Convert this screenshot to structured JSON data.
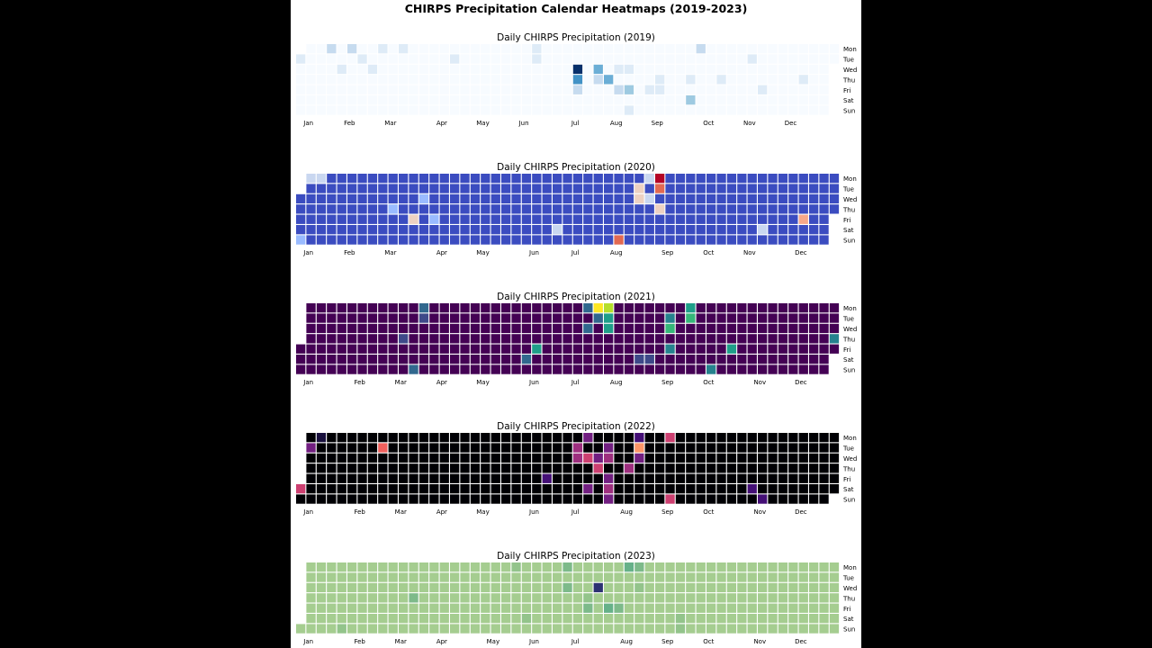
{
  "figure": {
    "title": "CHIRPS Precipitation Calendar Heatmaps (2019-2023)"
  },
  "day_labels": [
    "Mon",
    "Tue",
    "Wed",
    "Thu",
    "Fri",
    "Sat",
    "Sun"
  ],
  "chart_data": [
    {
      "type": "heatmap",
      "year": 2019,
      "title": "Daily CHIRPS Precipitation (2019)",
      "month_labels": [
        "Jan",
        "Feb",
        "Mar",
        "Apr",
        "May",
        "Jun",
        "Jul",
        "Aug",
        "Sep",
        "Oct",
        "Nov",
        "Dec"
      ],
      "colormap": "Blues",
      "colors": [
        "#f7fbff",
        "#deebf7",
        "#c6dbef",
        "#9ecae1",
        "#6baed6",
        "#4292c6",
        "#2171b5",
        "#08519c",
        "#08306b"
      ],
      "background_level": 0,
      "highlight_cells": [
        {
          "week": 3,
          "day": 0,
          "level": 2
        },
        {
          "week": 5,
          "day": 0,
          "level": 2
        },
        {
          "week": 8,
          "day": 0,
          "level": 1
        },
        {
          "week": 10,
          "day": 0,
          "level": 1
        },
        {
          "week": 23,
          "day": 0,
          "level": 1
        },
        {
          "week": 39,
          "day": 0,
          "level": 2
        },
        {
          "week": 0,
          "day": 1,
          "level": 1
        },
        {
          "week": 6,
          "day": 1,
          "level": 1
        },
        {
          "week": 15,
          "day": 1,
          "level": 1
        },
        {
          "week": 23,
          "day": 1,
          "level": 1
        },
        {
          "week": 44,
          "day": 1,
          "level": 1
        },
        {
          "week": 4,
          "day": 2,
          "level": 1
        },
        {
          "week": 7,
          "day": 2,
          "level": 1
        },
        {
          "week": 27,
          "day": 2,
          "level": 8
        },
        {
          "week": 29,
          "day": 2,
          "level": 4
        },
        {
          "week": 31,
          "day": 2,
          "level": 1
        },
        {
          "week": 32,
          "day": 2,
          "level": 1
        },
        {
          "week": 27,
          "day": 3,
          "level": 5
        },
        {
          "week": 29,
          "day": 3,
          "level": 2
        },
        {
          "week": 30,
          "day": 3,
          "level": 4
        },
        {
          "week": 35,
          "day": 3,
          "level": 1
        },
        {
          "week": 38,
          "day": 3,
          "level": 1
        },
        {
          "week": 41,
          "day": 3,
          "level": 1
        },
        {
          "week": 49,
          "day": 3,
          "level": 1
        },
        {
          "week": 27,
          "day": 4,
          "level": 2
        },
        {
          "week": 31,
          "day": 4,
          "level": 2
        },
        {
          "week": 32,
          "day": 4,
          "level": 3
        },
        {
          "week": 34,
          "day": 4,
          "level": 1
        },
        {
          "week": 35,
          "day": 4,
          "level": 1
        },
        {
          "week": 45,
          "day": 4,
          "level": 1
        },
        {
          "week": 38,
          "day": 5,
          "level": 3
        },
        {
          "week": 32,
          "day": 6,
          "level": 1
        }
      ]
    },
    {
      "type": "heatmap",
      "year": 2020,
      "title": "Daily CHIRPS Precipitation (2020)",
      "month_labels": [
        "Jan",
        "Feb",
        "Mar",
        "Apr",
        "May",
        "Jun",
        "Jul",
        "Aug",
        "Sep",
        "Oct",
        "Nov",
        "Dec"
      ],
      "colormap": "coolwarm",
      "colors": [
        "#3b4cc0",
        "#6788ee",
        "#9abbff",
        "#c9d7f0",
        "#edd1c2",
        "#f7a889",
        "#e26952",
        "#b40426"
      ],
      "background_level": 0,
      "highlight_cells": [
        {
          "week": 1,
          "day": 0,
          "level": 3
        },
        {
          "week": 2,
          "day": 0,
          "level": 3
        },
        {
          "week": 34,
          "day": 0,
          "level": 3
        },
        {
          "week": 35,
          "day": 0,
          "level": 7
        },
        {
          "week": 33,
          "day": 1,
          "level": 4
        },
        {
          "week": 35,
          "day": 1,
          "level": 6
        },
        {
          "week": 12,
          "day": 2,
          "level": 2
        },
        {
          "week": 33,
          "day": 2,
          "level": 4
        },
        {
          "week": 34,
          "day": 2,
          "level": 3
        },
        {
          "week": 9,
          "day": 3,
          "level": 2
        },
        {
          "week": 35,
          "day": 3,
          "level": 4
        },
        {
          "week": 11,
          "day": 4,
          "level": 4
        },
        {
          "week": 13,
          "day": 4,
          "level": 2
        },
        {
          "week": 49,
          "day": 4,
          "level": 5
        },
        {
          "week": 25,
          "day": 5,
          "level": 3
        },
        {
          "week": 45,
          "day": 5,
          "level": 3
        },
        {
          "week": 0,
          "day": 6,
          "level": 2
        },
        {
          "week": 31,
          "day": 6,
          "level": 6
        }
      ]
    },
    {
      "type": "heatmap",
      "year": 2021,
      "title": "Daily CHIRPS Precipitation (2021)",
      "month_labels": [
        "Jan",
        "Feb",
        "Mar",
        "Apr",
        "May",
        "Jun",
        "Jul",
        "Aug",
        "Sep",
        "Oct",
        "Nov",
        "Dec"
      ],
      "colormap": "viridis",
      "colors": [
        "#440154",
        "#482878",
        "#3e4989",
        "#31688e",
        "#26828e",
        "#1f9e89",
        "#35b779",
        "#6ece58",
        "#b5de2b",
        "#fde725"
      ],
      "background_level": 0,
      "highlight_cells": [
        {
          "week": 12,
          "day": 0,
          "level": 3
        },
        {
          "week": 28,
          "day": 0,
          "level": 3
        },
        {
          "week": 29,
          "day": 0,
          "level": 9
        },
        {
          "week": 30,
          "day": 0,
          "level": 8
        },
        {
          "week": 38,
          "day": 0,
          "level": 5
        },
        {
          "week": 12,
          "day": 1,
          "level": 2
        },
        {
          "week": 29,
          "day": 1,
          "level": 3
        },
        {
          "week": 30,
          "day": 1,
          "level": 5
        },
        {
          "week": 36,
          "day": 1,
          "level": 4
        },
        {
          "week": 38,
          "day": 1,
          "level": 6
        },
        {
          "week": 28,
          "day": 2,
          "level": 3
        },
        {
          "week": 30,
          "day": 2,
          "level": 5
        },
        {
          "week": 36,
          "day": 2,
          "level": 6
        },
        {
          "week": 10,
          "day": 3,
          "level": 2
        },
        {
          "week": 52,
          "day": 3,
          "level": 4
        },
        {
          "week": 23,
          "day": 4,
          "level": 5
        },
        {
          "week": 36,
          "day": 4,
          "level": 4
        },
        {
          "week": 42,
          "day": 4,
          "level": 5
        },
        {
          "week": 22,
          "day": 5,
          "level": 3
        },
        {
          "week": 33,
          "day": 5,
          "level": 2
        },
        {
          "week": 34,
          "day": 5,
          "level": 2
        },
        {
          "week": 11,
          "day": 6,
          "level": 3
        },
        {
          "week": 40,
          "day": 6,
          "level": 4
        }
      ]
    },
    {
      "type": "heatmap",
      "year": 2022,
      "title": "Daily CHIRPS Precipitation (2022)",
      "month_labels": [
        "Jan",
        "Feb",
        "Mar",
        "Apr",
        "May",
        "Jun",
        "Jul",
        "Aug",
        "Sep",
        "Oct",
        "Nov",
        "Dec"
      ],
      "colormap": "magma",
      "colors": [
        "#000004",
        "#180f3d",
        "#440f76",
        "#721f81",
        "#9e2f7f",
        "#cd4071",
        "#f1605d",
        "#fd9668",
        "#feca8d",
        "#fcfdbf"
      ],
      "background_level": 0,
      "highlight_cells": [
        {
          "week": 2,
          "day": 0,
          "level": 1
        },
        {
          "week": 28,
          "day": 0,
          "level": 3
        },
        {
          "week": 33,
          "day": 0,
          "level": 2
        },
        {
          "week": 36,
          "day": 0,
          "level": 5
        },
        {
          "week": 1,
          "day": 1,
          "level": 3
        },
        {
          "week": 8,
          "day": 1,
          "level": 6
        },
        {
          "week": 27,
          "day": 1,
          "level": 4
        },
        {
          "week": 30,
          "day": 1,
          "level": 3
        },
        {
          "week": 33,
          "day": 1,
          "level": 7
        },
        {
          "week": 27,
          "day": 2,
          "level": 4
        },
        {
          "week": 28,
          "day": 2,
          "level": 5
        },
        {
          "week": 29,
          "day": 2,
          "level": 3
        },
        {
          "week": 30,
          "day": 2,
          "level": 4
        },
        {
          "week": 33,
          "day": 2,
          "level": 3
        },
        {
          "week": 29,
          "day": 3,
          "level": 5
        },
        {
          "week": 32,
          "day": 3,
          "level": 4
        },
        {
          "week": 0,
          "day": 4,
          "level": 9
        },
        {
          "week": 24,
          "day": 4,
          "level": 2
        },
        {
          "week": 30,
          "day": 4,
          "level": 3
        },
        {
          "week": 0,
          "day": 5,
          "level": 5
        },
        {
          "week": 28,
          "day": 5,
          "level": 3
        },
        {
          "week": 30,
          "day": 5,
          "level": 4
        },
        {
          "week": 44,
          "day": 5,
          "level": 2
        },
        {
          "week": 30,
          "day": 6,
          "level": 3
        },
        {
          "week": 36,
          "day": 6,
          "level": 5
        },
        {
          "week": 45,
          "day": 6,
          "level": 2
        }
      ]
    },
    {
      "type": "heatmap",
      "year": 2023,
      "title": "Daily CHIRPS Precipitation (2023)",
      "month_labels": [
        "Jan",
        "Feb",
        "Mar",
        "Apr",
        "May",
        "Jun",
        "Jul",
        "Aug",
        "Sep",
        "Oct",
        "Nov",
        "Dec"
      ],
      "colormap": "crest",
      "colors": [
        "#a5cd90",
        "#93c48b",
        "#7dba8a",
        "#66b189",
        "#4fa689",
        "#3a9c89",
        "#2c8f89",
        "#26808a",
        "#22708a",
        "#2c3172"
      ],
      "background_level": 0,
      "highlight_cells": [
        {
          "week": 21,
          "day": 0,
          "level": 1
        },
        {
          "week": 26,
          "day": 0,
          "level": 2
        },
        {
          "week": 32,
          "day": 0,
          "level": 3
        },
        {
          "week": 33,
          "day": 0,
          "level": 2
        },
        {
          "week": 26,
          "day": 2,
          "level": 2
        },
        {
          "week": 29,
          "day": 2,
          "level": 9
        },
        {
          "week": 33,
          "day": 2,
          "level": 1
        },
        {
          "week": 11,
          "day": 3,
          "level": 2
        },
        {
          "week": 28,
          "day": 3,
          "level": 1
        },
        {
          "week": 28,
          "day": 4,
          "level": 2
        },
        {
          "week": 30,
          "day": 4,
          "level": 3
        },
        {
          "week": 31,
          "day": 4,
          "level": 2
        },
        {
          "week": 22,
          "day": 5,
          "level": 1
        },
        {
          "week": 37,
          "day": 5,
          "level": 1
        },
        {
          "week": 4,
          "day": 6,
          "level": 1
        },
        {
          "week": 37,
          "day": 6,
          "level": 1
        }
      ]
    }
  ]
}
